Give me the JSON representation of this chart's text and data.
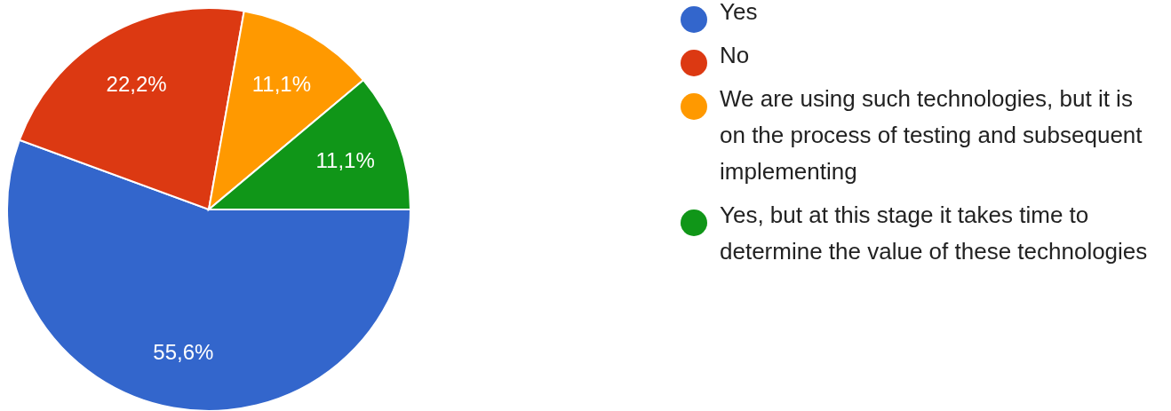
{
  "chart_data": {
    "type": "pie",
    "categories": [
      "Yes",
      "No",
      "We are using such technologies, but it is on the process of testing and subsequent implementing",
      "Yes, but at this stage it takes time to determine the value of these technologies"
    ],
    "values": [
      55.6,
      22.2,
      11.1,
      11.1
    ],
    "colors": [
      "#3366cc",
      "#dc3912",
      "#ff9900",
      "#109618"
    ],
    "value_labels": [
      "55,6%",
      "22,2%",
      "11,1%",
      "11,1%"
    ],
    "legend": "right"
  }
}
